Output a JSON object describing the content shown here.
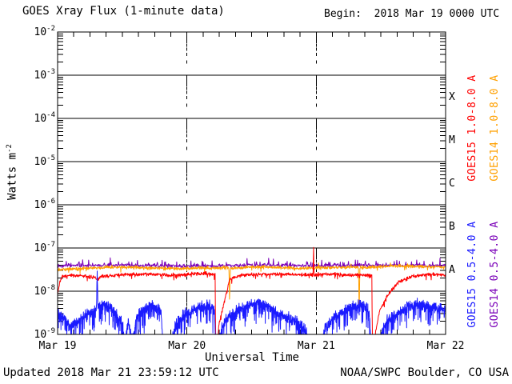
{
  "header": {
    "title": "GOES Xray Flux (1-minute data)",
    "begin_label": "Begin:",
    "begin_value": "2018 Mar 19 0000 UTC"
  },
  "footer": {
    "updated": "Updated 2018 Mar 21 23:59:12 UTC",
    "source": "NOAA/SWPC Boulder, CO USA"
  },
  "y_axis_label": {
    "base": "Watts m",
    "exp": "-2"
  },
  "chart_data": {
    "type": "line",
    "title": "GOES Xray Flux (1-minute data)",
    "xlabel": "Universal Time",
    "ylabel": "Watts m^-2",
    "x_ticks": [
      "Mar 19",
      "Mar 20",
      "Mar 21",
      "Mar 22"
    ],
    "x_range_days": 3,
    "x_minor_ticks_per_day": 8,
    "y_log_range": [
      -9,
      -2
    ],
    "y_scale": "log",
    "grid": "horizontal solid per decade, vertical dashed at day boundaries",
    "flare_classes": [
      {
        "letter": "X",
        "log_center": -3.5
      },
      {
        "letter": "M",
        "log_center": -4.5
      },
      {
        "letter": "C",
        "log_center": -5.5
      },
      {
        "letter": "B",
        "log_center": -6.5
      },
      {
        "letter": "A",
        "log_center": -7.5
      }
    ],
    "series": [
      {
        "label": "GOES15 1.0-8.0 A",
        "color": "#ff0000",
        "approx_mean_flux_wm2": 2.4e-08,
        "noise": 0.05,
        "spike_down_p": 0.04,
        "spike_down_mag": 0.12,
        "spike_up_p": 0,
        "spike_up_mag": 0,
        "samples": 1400,
        "seed": 7,
        "envelope_log_points": [
          [
            0,
            -8.05
          ],
          [
            0.02,
            -7.75
          ],
          [
            0.04,
            -7.66
          ],
          [
            0.15,
            -7.63
          ],
          [
            0.28,
            -7.68
          ],
          [
            0.31,
            -7.73
          ],
          [
            0.34,
            -7.66
          ],
          [
            0.5,
            -7.62
          ],
          [
            0.7,
            -7.6
          ],
          [
            0.9,
            -7.63
          ],
          [
            1.05,
            -7.6
          ],
          [
            1.15,
            -7.59
          ],
          [
            1.218,
            -7.61
          ],
          [
            1.222,
            -9.4
          ],
          [
            1.235,
            -9.4
          ],
          [
            1.245,
            -8.8
          ],
          [
            1.33,
            -7.72
          ],
          [
            1.42,
            -7.63
          ],
          [
            1.55,
            -7.61
          ],
          [
            1.7,
            -7.6
          ],
          [
            1.85,
            -7.62
          ],
          [
            1.9755,
            -7.62
          ],
          [
            1.979,
            -6.95
          ],
          [
            1.9825,
            -7.62
          ],
          [
            2.1,
            -7.6
          ],
          [
            2.25,
            -7.63
          ],
          [
            2.35,
            -7.62
          ],
          [
            2.43,
            -7.63
          ],
          [
            2.434,
            -9.4
          ],
          [
            2.446,
            -9.4
          ],
          [
            2.455,
            -9.0
          ],
          [
            2.49,
            -8.45
          ],
          [
            2.55,
            -8.1
          ],
          [
            2.63,
            -7.8
          ],
          [
            2.74,
            -7.66
          ],
          [
            2.87,
            -7.61
          ],
          [
            3,
            -7.62
          ]
        ]
      },
      {
        "label": "GOES14 1.0-8.0 A",
        "color": "#ffa000",
        "approx_mean_flux_wm2": 3.5e-08,
        "noise": 0.045,
        "spike_down_p": 0.02,
        "spike_down_mag": 0.1,
        "spike_up_p": 0.02,
        "spike_up_mag": 0.08,
        "samples": 1400,
        "seed": 11,
        "envelope_log_points": [
          [
            0,
            -7.5
          ],
          [
            0.2,
            -7.47
          ],
          [
            0.45,
            -7.44
          ],
          [
            0.7,
            -7.46
          ],
          [
            0.95,
            -7.48
          ],
          [
            1.15,
            -7.46
          ],
          [
            1.325,
            -7.46
          ],
          [
            1.33,
            -8.25
          ],
          [
            1.335,
            -7.47
          ],
          [
            1.5,
            -7.44
          ],
          [
            1.7,
            -7.45
          ],
          [
            1.9,
            -7.47
          ],
          [
            2.1,
            -7.45
          ],
          [
            2.327,
            -7.45
          ],
          [
            2.332,
            -8.52
          ],
          [
            2.337,
            -7.46
          ],
          [
            2.5,
            -7.43
          ],
          [
            2.65,
            -7.41
          ],
          [
            2.8,
            -7.43
          ],
          [
            3,
            -7.44
          ]
        ]
      },
      {
        "label": "GOES15 0.5-4.0 A",
        "color": "#1a1aff",
        "approx_mean_flux_wm2": 4e-09,
        "noise": 0.15,
        "spike_down_p": 0.2,
        "spike_down_mag": 0.45,
        "spike_up_p": 0,
        "spike_up_mag": 0,
        "samples": 2400,
        "seed": 21,
        "envelope_log_points": [
          [
            0,
            -8.5
          ],
          [
            0.05,
            -8.65
          ],
          [
            0.1,
            -8.8
          ],
          [
            0.16,
            -8.7
          ],
          [
            0.22,
            -8.55
          ],
          [
            0.27,
            -8.5
          ],
          [
            0.3,
            -8.45
          ],
          [
            0.306,
            -7.53
          ],
          [
            0.312,
            -8.35
          ],
          [
            0.36,
            -8.3
          ],
          [
            0.42,
            -8.4
          ],
          [
            0.47,
            -8.6
          ],
          [
            0.5,
            -8.75
          ],
          [
            0.525,
            -9.2
          ],
          [
            0.545,
            -8.7
          ],
          [
            0.585,
            -9.15
          ],
          [
            0.61,
            -8.6
          ],
          [
            0.66,
            -8.45
          ],
          [
            0.72,
            -8.3
          ],
          [
            0.77,
            -8.4
          ],
          [
            0.8,
            -8.5
          ],
          [
            0.815,
            -9.3
          ],
          [
            0.875,
            -9.3
          ],
          [
            0.915,
            -8.75
          ],
          [
            0.97,
            -8.55
          ],
          [
            1.04,
            -8.45
          ],
          [
            1.12,
            -8.35
          ],
          [
            1.18,
            -8.3
          ],
          [
            1.215,
            -8.5
          ],
          [
            1.222,
            -9.4
          ],
          [
            1.24,
            -9.4
          ],
          [
            1.27,
            -8.8
          ],
          [
            1.33,
            -8.55
          ],
          [
            1.42,
            -8.4
          ],
          [
            1.5,
            -8.3
          ],
          [
            1.57,
            -8.25
          ],
          [
            1.63,
            -8.35
          ],
          [
            1.7,
            -8.5
          ],
          [
            1.77,
            -8.6
          ],
          [
            1.84,
            -8.7
          ],
          [
            1.9,
            -8.85
          ],
          [
            1.93,
            -9.0
          ],
          [
            1.96,
            -9.35
          ],
          [
            2.035,
            -9.35
          ],
          [
            2.07,
            -8.85
          ],
          [
            2.14,
            -8.6
          ],
          [
            2.22,
            -8.45
          ],
          [
            2.3,
            -8.35
          ],
          [
            2.37,
            -8.3
          ],
          [
            2.41,
            -8.5
          ],
          [
            2.425,
            -9.4
          ],
          [
            2.475,
            -9.4
          ],
          [
            2.51,
            -8.9
          ],
          [
            2.56,
            -8.65
          ],
          [
            2.63,
            -8.5
          ],
          [
            2.72,
            -8.35
          ],
          [
            2.8,
            -8.3
          ],
          [
            2.88,
            -8.35
          ],
          [
            2.95,
            -8.4
          ],
          [
            3,
            -8.45
          ]
        ]
      },
      {
        "label": "GOES14 0.5-4.0 A",
        "color": "#7a00b8",
        "approx_mean_flux_wm2": 3.9e-08,
        "noise": 0.05,
        "spike_down_p": 0,
        "spike_down_mag": 0,
        "spike_up_p": 0.12,
        "spike_up_mag": 0.15,
        "samples": 900,
        "seed": 13,
        "envelope_log_points": [
          [
            0,
            -7.41
          ],
          [
            0.5,
            -7.4
          ],
          [
            1,
            -7.42
          ],
          [
            1.5,
            -7.4
          ],
          [
            2,
            -7.41
          ],
          [
            2.5,
            -7.4
          ],
          [
            3,
            -7.41
          ]
        ]
      }
    ],
    "legend_position": "right, rotated 90deg",
    "events_noted": [
      "GOES15 eclipse dropouts near Mar 20 05:24 and Mar 21 10:30 (red/blue drop to floor)",
      "GOES14 brief dips near Mar 20 07:55 and Mar 21 08:00 (orange)",
      "small red spike to ~1e-7 just before Mar 21 00:00",
      "blue spike to ~3e-8 near Mar 19 07:20"
    ]
  }
}
